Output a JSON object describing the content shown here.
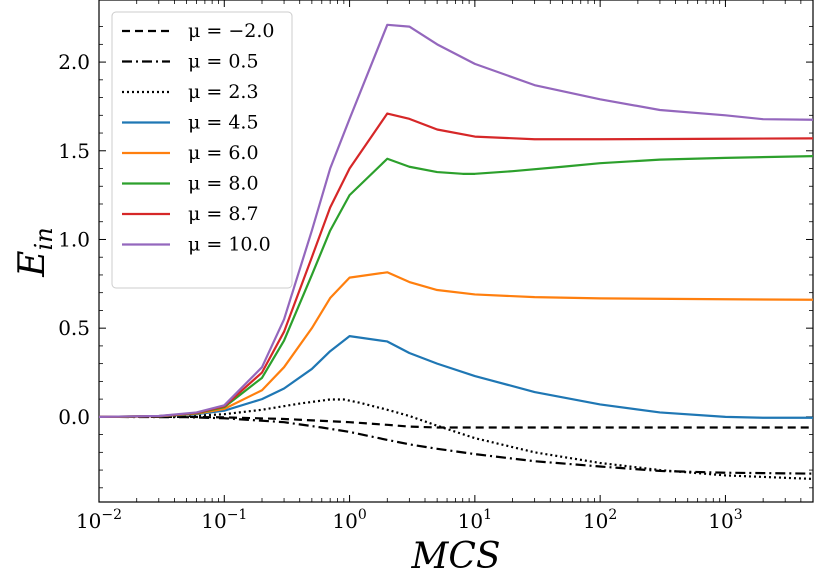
{
  "chart_data": {
    "type": "line",
    "xlabel_main": "MCS",
    "ylabel_main": "E",
    "ylabel_sub": "in",
    "xscale": "log",
    "xlim": [
      0.01,
      5000
    ],
    "ylim": [
      -0.48,
      2.35
    ],
    "x_ticks": [
      {
        "value": 0.01,
        "base": "10",
        "exp": "−2"
      },
      {
        "value": 0.1,
        "base": "10",
        "exp": "−1"
      },
      {
        "value": 1,
        "base": "10",
        "exp": "0"
      },
      {
        "value": 10,
        "base": "10",
        "exp": "1"
      },
      {
        "value": 100,
        "base": "10",
        "exp": "2"
      },
      {
        "value": 1000,
        "base": "10",
        "exp": "3"
      }
    ],
    "y_ticks": [
      {
        "value": 0.0,
        "label": "0.0"
      },
      {
        "value": 0.5,
        "label": "0.5"
      },
      {
        "value": 1.0,
        "label": "1.0"
      },
      {
        "value": 1.5,
        "label": "1.5"
      },
      {
        "value": 2.0,
        "label": "2.0"
      }
    ],
    "grid": false,
    "legend_position": "top-left",
    "series": [
      {
        "name": "μ = −2.0",
        "color": "#000000",
        "dash": "dashed",
        "x": [
          0.01,
          0.05,
          0.1,
          0.3,
          1,
          2,
          3,
          5,
          10,
          100,
          1000,
          5000
        ],
        "y": [
          0.0,
          0.0,
          -0.003,
          -0.012,
          -0.03,
          -0.045,
          -0.055,
          -0.06,
          -0.06,
          -0.06,
          -0.06,
          -0.06
        ]
      },
      {
        "name": "μ = 0.5",
        "color": "#000000",
        "dash": "dashdot",
        "x": [
          0.01,
          0.05,
          0.1,
          0.3,
          0.6,
          1,
          2,
          3,
          5,
          10,
          30,
          100,
          300,
          1000,
          5000
        ],
        "y": [
          0.0,
          -0.002,
          -0.008,
          -0.03,
          -0.06,
          -0.085,
          -0.13,
          -0.155,
          -0.18,
          -0.21,
          -0.25,
          -0.28,
          -0.305,
          -0.315,
          -0.32
        ]
      },
      {
        "name": "μ = 2.3",
        "color": "#000000",
        "dash": "dotted",
        "x": [
          0.01,
          0.05,
          0.1,
          0.2,
          0.4,
          0.7,
          0.9,
          1.2,
          2,
          3,
          5,
          10,
          30,
          100,
          300,
          1000,
          5000
        ],
        "y": [
          0.0,
          0.004,
          0.015,
          0.04,
          0.075,
          0.098,
          0.098,
          0.08,
          0.04,
          0.005,
          -0.05,
          -0.12,
          -0.2,
          -0.26,
          -0.3,
          -0.33,
          -0.35
        ]
      },
      {
        "name": "μ = 4.5",
        "color": "#1f77b4",
        "dash": "solid",
        "x": [
          0.01,
          0.03,
          0.06,
          0.1,
          0.2,
          0.3,
          0.5,
          0.7,
          1,
          2,
          3,
          5,
          10,
          30,
          100,
          300,
          1000,
          2000,
          5000
        ],
        "y": [
          0.0,
          0.003,
          0.015,
          0.035,
          0.1,
          0.16,
          0.27,
          0.37,
          0.455,
          0.425,
          0.36,
          0.3,
          0.23,
          0.14,
          0.07,
          0.025,
          0.0,
          -0.005,
          -0.005
        ]
      },
      {
        "name": "μ = 6.0",
        "color": "#ff7f0e",
        "dash": "solid",
        "x": [
          0.01,
          0.03,
          0.06,
          0.1,
          0.2,
          0.3,
          0.5,
          0.7,
          1,
          2,
          3,
          5,
          10,
          30,
          100,
          1000,
          5000
        ],
        "y": [
          0.0,
          0.003,
          0.018,
          0.045,
          0.15,
          0.28,
          0.5,
          0.67,
          0.785,
          0.815,
          0.76,
          0.715,
          0.69,
          0.675,
          0.668,
          0.663,
          0.66
        ]
      },
      {
        "name": "μ = 8.0",
        "color": "#2ca02c",
        "dash": "solid",
        "x": [
          0.01,
          0.03,
          0.06,
          0.1,
          0.2,
          0.3,
          0.5,
          0.7,
          1,
          2,
          3,
          5,
          8,
          10,
          20,
          50,
          100,
          300,
          1000,
          5000
        ],
        "y": [
          0.0,
          0.004,
          0.02,
          0.055,
          0.22,
          0.43,
          0.8,
          1.05,
          1.25,
          1.455,
          1.41,
          1.38,
          1.37,
          1.37,
          1.385,
          1.41,
          1.43,
          1.45,
          1.46,
          1.47
        ]
      },
      {
        "name": "μ = 8.7",
        "color": "#d62728",
        "dash": "solid",
        "x": [
          0.01,
          0.03,
          0.06,
          0.1,
          0.2,
          0.3,
          0.5,
          0.7,
          1,
          2,
          3,
          5,
          10,
          30,
          100,
          1000,
          5000
        ],
        "y": [
          0.0,
          0.004,
          0.022,
          0.06,
          0.25,
          0.48,
          0.9,
          1.18,
          1.4,
          1.71,
          1.68,
          1.62,
          1.58,
          1.565,
          1.565,
          1.568,
          1.57
        ]
      },
      {
        "name": "μ = 10.0",
        "color": "#9467bd",
        "dash": "solid",
        "x": [
          0.01,
          0.03,
          0.06,
          0.1,
          0.2,
          0.3,
          0.5,
          0.7,
          1,
          2,
          3,
          5,
          10,
          30,
          100,
          300,
          1000,
          2000,
          5000
        ],
        "y": [
          0.0,
          0.005,
          0.025,
          0.065,
          0.28,
          0.55,
          1.05,
          1.4,
          1.68,
          2.21,
          2.2,
          2.1,
          1.99,
          1.87,
          1.79,
          1.73,
          1.7,
          1.678,
          1.675
        ]
      }
    ]
  }
}
